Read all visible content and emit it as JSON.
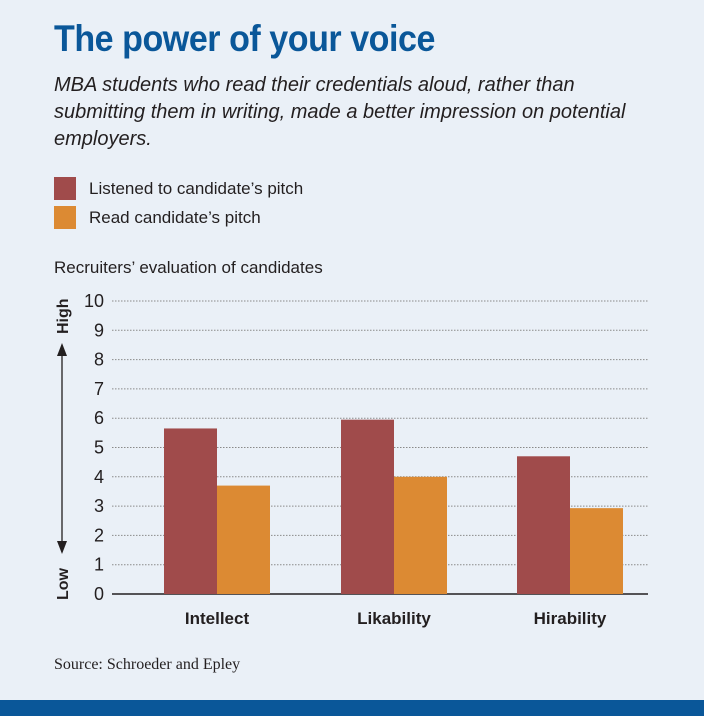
{
  "colors": {
    "listened": "#a04b4b",
    "read": "#dc8a33",
    "title": "#0a5799",
    "background": "#eaf0f7"
  },
  "chart_data": {
    "type": "bar",
    "title": "The power of your voice",
    "subtitle": "MBA students who read their credentials aloud, rather than submitting them in writing, made a better impression on potential employers.",
    "chart_title": "Recruiters’ evaluation of candidates",
    "categories": [
      "Intellect",
      "Likability",
      "Hirability"
    ],
    "series": [
      {
        "name": "Listened to candidate’s pitch",
        "values": [
          5.65,
          5.95,
          4.7
        ]
      },
      {
        "name": "Read candidate’s pitch",
        "values": [
          3.7,
          4.0,
          2.93
        ]
      }
    ],
    "ylim": [
      0,
      10
    ],
    "yticks": [
      0,
      1,
      2,
      3,
      4,
      5,
      6,
      7,
      8,
      9,
      10
    ],
    "y_axis_high_label": "High",
    "y_axis_low_label": "Low",
    "xlabel": "",
    "ylabel": "",
    "grid": true,
    "legend_position": "top-left",
    "source": "Source: Schroeder and Epley"
  }
}
